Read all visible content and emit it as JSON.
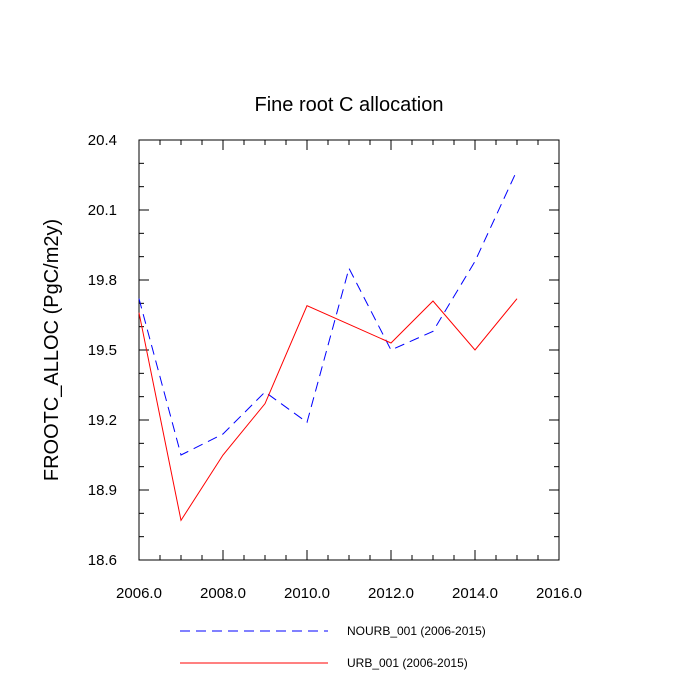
{
  "chart_data": {
    "type": "line",
    "title": "Fine root C allocation",
    "xlabel": "",
    "ylabel": "FROOTC_ALLOC  (PgC/m2y)",
    "xlim": [
      2006.0,
      2016.0
    ],
    "ylim": [
      18.6,
      20.4
    ],
    "x_ticks": [
      2006.0,
      2008.0,
      2010.0,
      2012.0,
      2014.0,
      2016.0
    ],
    "x_tick_labels": [
      "2006.0",
      "2008.0",
      "2010.0",
      "2012.0",
      "2014.0",
      "2016.0"
    ],
    "y_ticks": [
      18.6,
      18.9,
      19.2,
      19.5,
      19.8,
      20.1,
      20.4
    ],
    "y_tick_labels": [
      "18.6",
      "18.9",
      "19.2",
      "19.5",
      "19.8",
      "20.1",
      "20.4"
    ],
    "grid": false,
    "legend_position": "bottom",
    "x": [
      2006,
      2007,
      2008,
      2009,
      2010,
      2011,
      2012,
      2013,
      2014,
      2015
    ],
    "series": [
      {
        "name": "NOURB_001 (2006-2015)",
        "color": "#0000ff",
        "dash": "dashed",
        "values": [
          19.72,
          19.05,
          19.14,
          19.32,
          19.19,
          19.85,
          19.5,
          19.58,
          19.88,
          20.27
        ]
      },
      {
        "name": "URB_001 (2006-2015)",
        "color": "#ff0000",
        "dash": "solid",
        "values": [
          19.66,
          18.77,
          19.05,
          19.27,
          19.69,
          19.61,
          19.53,
          19.71,
          19.5,
          19.72
        ]
      }
    ]
  }
}
